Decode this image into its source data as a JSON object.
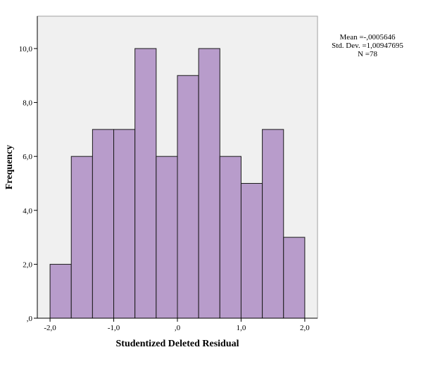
{
  "chart_data": {
    "type": "bar",
    "subtype": "histogram",
    "xlabel": "Studentized Deleted Residual",
    "ylabel": "Frequency",
    "xlim": [
      -2.2,
      2.2
    ],
    "ylim": [
      0,
      11.2
    ],
    "x_ticks": [
      -2.0,
      -1.0,
      0.0,
      1.0,
      2.0
    ],
    "x_tick_labels": [
      "-2,0",
      "-1,0",
      ",0",
      "1,0",
      "2,0"
    ],
    "y_ticks": [
      0,
      2,
      4,
      6,
      8,
      10
    ],
    "y_tick_labels": [
      ",0",
      "2,0",
      "4,0",
      "6,0",
      "8,0",
      "10,0"
    ],
    "bins": [
      {
        "start": -2.0,
        "end": -1.6667,
        "value": 2
      },
      {
        "start": -1.6667,
        "end": -1.3333,
        "value": 6
      },
      {
        "start": -1.3333,
        "end": -1.0,
        "value": 7
      },
      {
        "start": -1.0,
        "end": -0.6667,
        "value": 7
      },
      {
        "start": -0.6667,
        "end": -0.3333,
        "value": 10
      },
      {
        "start": -0.3333,
        "end": 0.0,
        "value": 6
      },
      {
        "start": 0.0,
        "end": 0.3333,
        "value": 9
      },
      {
        "start": 0.3333,
        "end": 0.6667,
        "value": 10
      },
      {
        "start": 0.6667,
        "end": 1.0,
        "value": 6
      },
      {
        "start": 1.0,
        "end": 1.3333,
        "value": 5
      },
      {
        "start": 1.3333,
        "end": 1.6667,
        "value": 7
      },
      {
        "start": 1.6667,
        "end": 2.0,
        "value": 3
      }
    ],
    "grid": false,
    "colors": {
      "bar_fill": "#b89ccb",
      "bar_stroke": "#1a1a1a",
      "plot_background": "#f0f0f0"
    }
  },
  "stats": {
    "mean": "Mean =-,0005646",
    "std_dev": "Std. Dev. =1,00947695",
    "n": "N =78"
  }
}
